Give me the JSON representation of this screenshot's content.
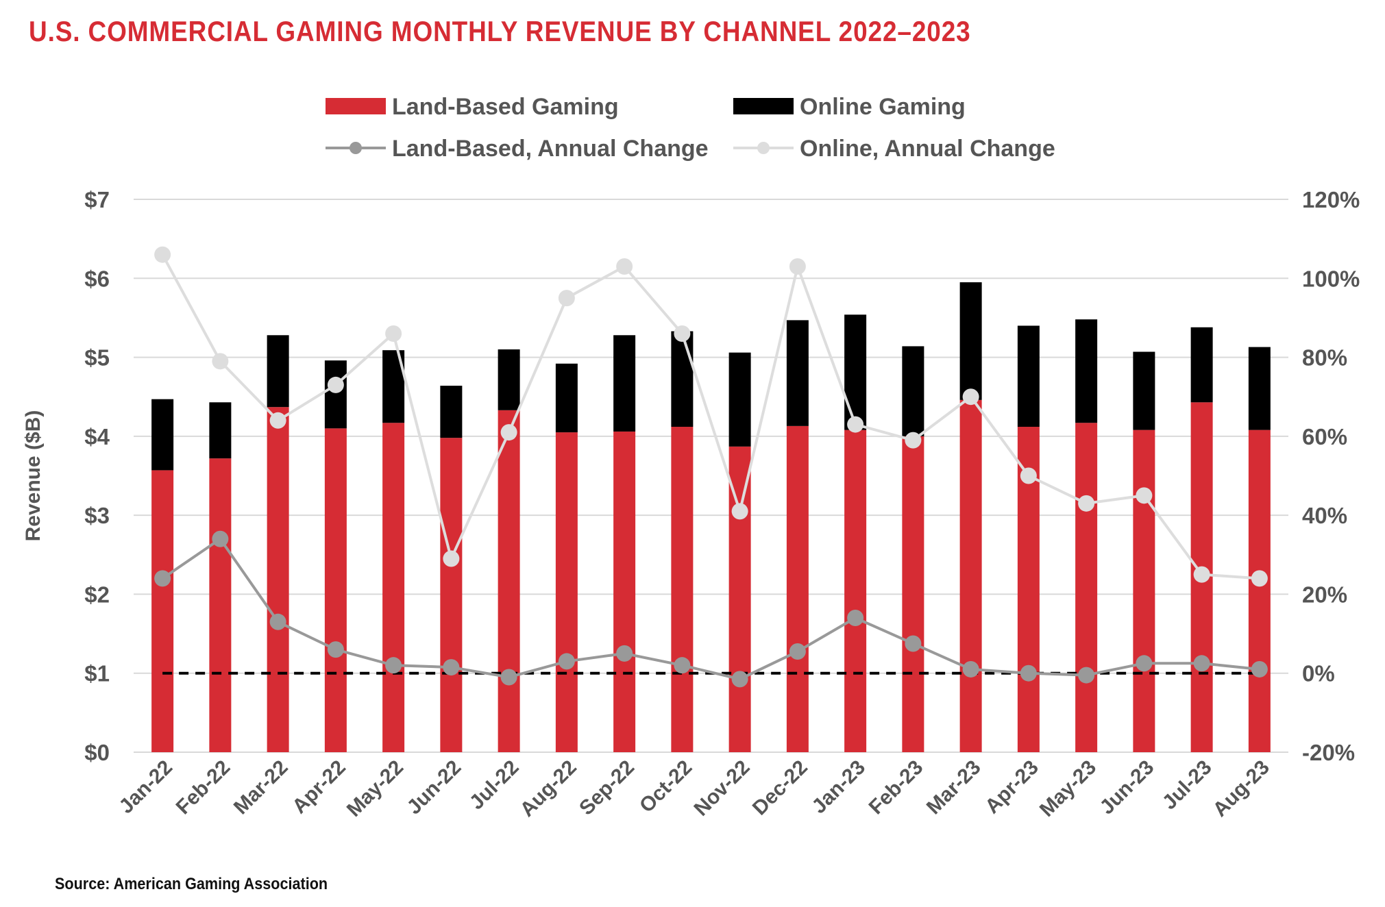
{
  "title": "U.S. COMMERCIAL GAMING MONTHLY REVENUE BY CHANNEL 2022–2023",
  "source": "Source: American Gaming Association",
  "chart_data": {
    "type": "bar",
    "stacked": true,
    "categories": [
      "Jan-22",
      "Feb-22",
      "Mar-22",
      "Apr-22",
      "May-22",
      "Jun-22",
      "Jul-22",
      "Aug-22",
      "Sep-22",
      "Oct-22",
      "Nov-22",
      "Dec-22",
      "Jan-23",
      "Feb-23",
      "Mar-23",
      "Apr-23",
      "May-23",
      "Jun-23",
      "Jul-23",
      "Aug-23"
    ],
    "ylabel": "Revenue ($B)",
    "ylim": [
      0,
      7
    ],
    "y_ticks": [
      "$0",
      "$1",
      "$2",
      "$3",
      "$4",
      "$5",
      "$6",
      "$7"
    ],
    "y2lim": [
      -20,
      120
    ],
    "y2_ticks": [
      "-20%",
      "0%",
      "20%",
      "40%",
      "60%",
      "80%",
      "100%",
      "120%"
    ],
    "grid": true,
    "legend_position": "top",
    "series": [
      {
        "name": "Land-Based Gaming",
        "kind": "bar",
        "axis": "left",
        "color": "#d62c34",
        "values": [
          3.57,
          3.72,
          4.37,
          4.1,
          4.17,
          3.98,
          4.33,
          4.05,
          4.06,
          4.12,
          3.87,
          4.13,
          4.08,
          4.0,
          4.46,
          4.12,
          4.17,
          4.08,
          4.43,
          4.08
        ]
      },
      {
        "name": "Online Gaming",
        "kind": "bar",
        "axis": "left",
        "color": "#000000",
        "values": [
          0.9,
          0.71,
          0.91,
          0.86,
          0.92,
          0.66,
          0.77,
          0.87,
          1.22,
          1.21,
          1.19,
          1.34,
          1.46,
          1.14,
          1.49,
          1.28,
          1.31,
          0.99,
          0.95,
          1.05
        ]
      },
      {
        "name": "Land-Based, Annual Change",
        "kind": "line",
        "axis": "right",
        "color": "#999999",
        "values": [
          24,
          34,
          13,
          6,
          2,
          1.5,
          -1,
          3,
          5,
          2,
          -1.5,
          5.5,
          14,
          7.5,
          1,
          0,
          -0.5,
          2.5,
          2.5,
          1
        ]
      },
      {
        "name": "Online, Annual Change",
        "kind": "line",
        "axis": "right",
        "color": "#dddddd",
        "values": [
          106,
          79,
          64,
          73,
          86,
          29,
          61,
          95,
          103,
          86,
          41,
          103,
          63,
          59,
          70,
          50,
          43,
          45,
          25,
          24
        ]
      }
    ],
    "reference_line": {
      "axis": "right",
      "value": 0,
      "style": "dashed",
      "color": "#000000"
    }
  }
}
